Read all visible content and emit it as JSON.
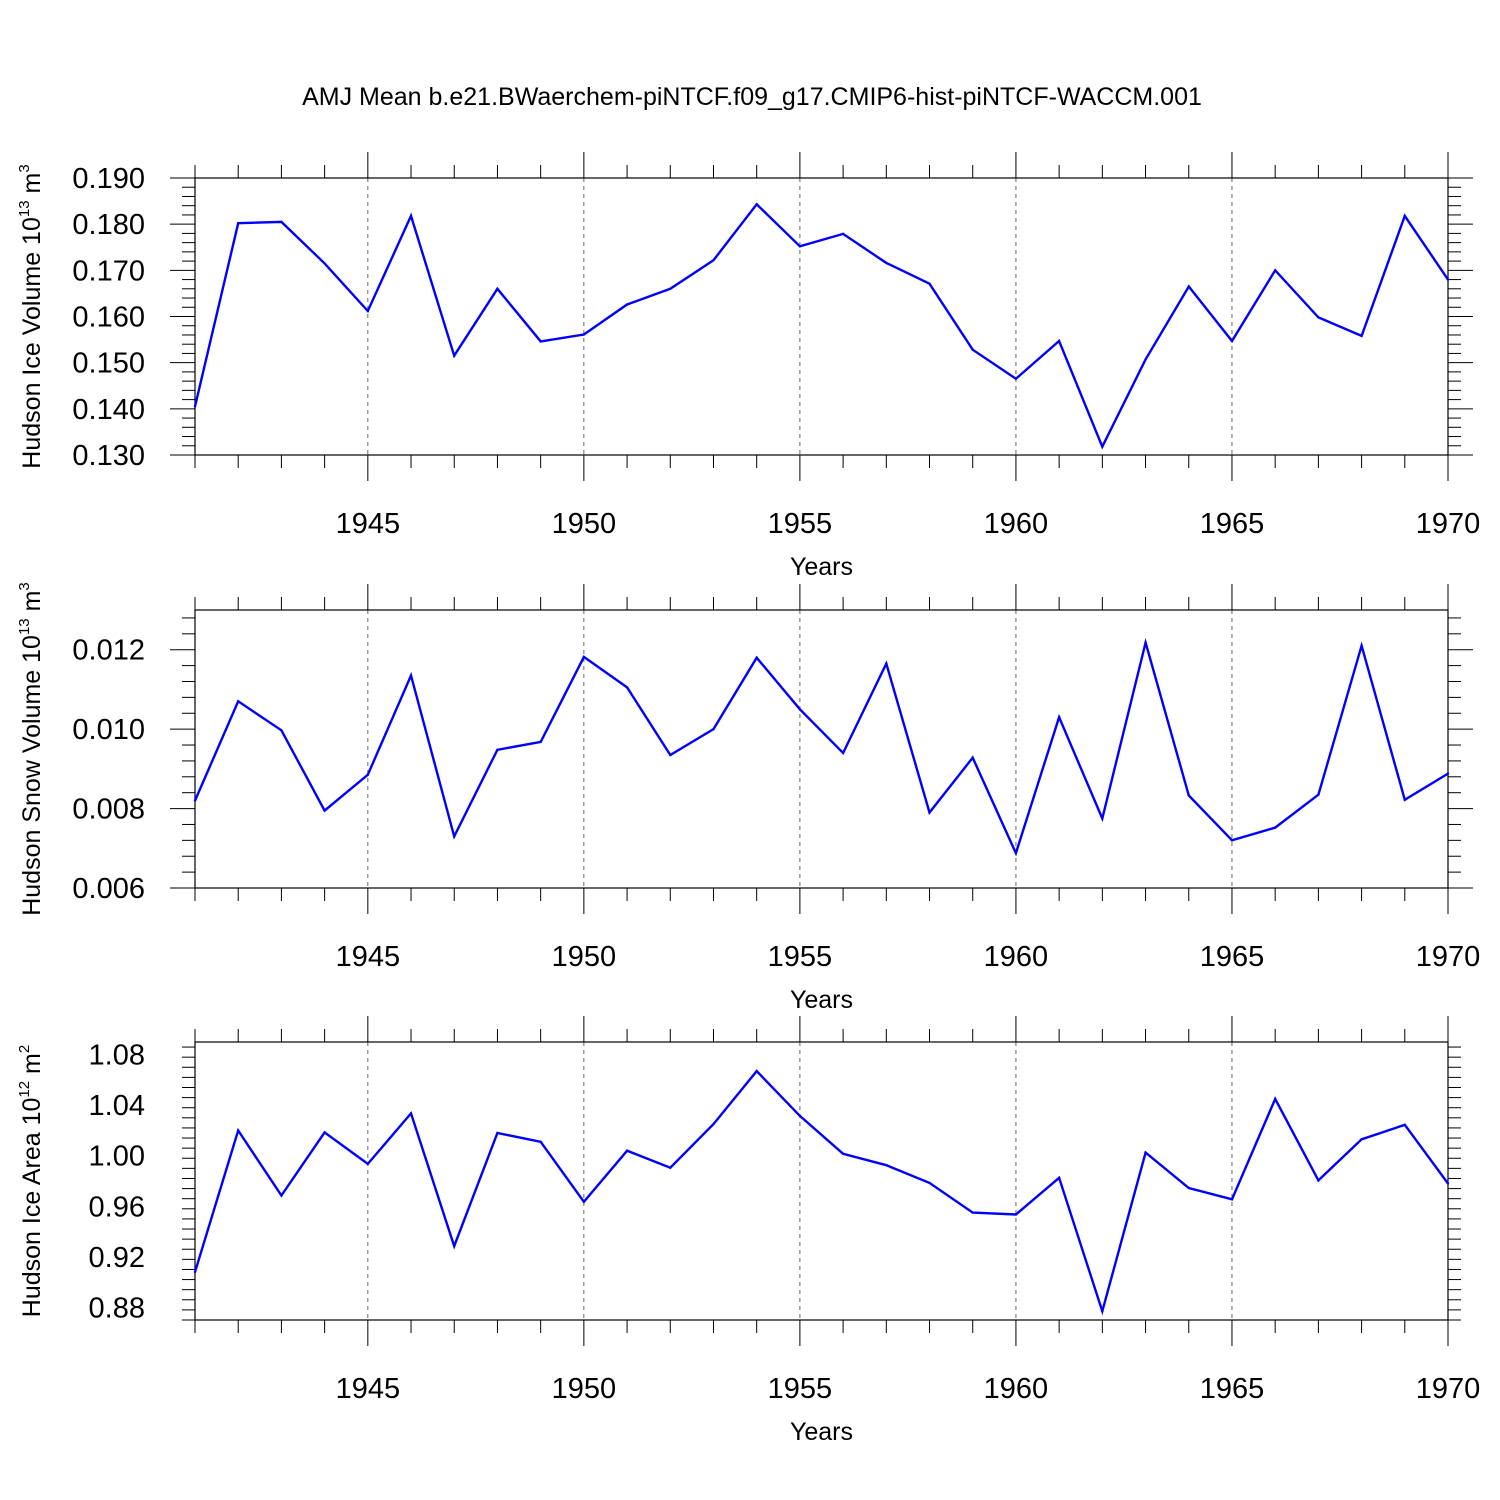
{
  "figure_title": "AMJ Mean b.e21.BWaerchem-piNTCF.f09_g17.CMIP6-hist-piNTCF-WACCM.001",
  "colors": {
    "line": "#0000ff",
    "axis": "#000000",
    "grid": "#000000"
  },
  "chart_data": [
    {
      "type": "line",
      "title": "AMJ Mean b.e21.BWaerchem-piNTCF.f09_g17.CMIP6-hist-piNTCF-WACCM.001",
      "ylabel": {
        "base": "Hudson Ice Volume 10",
        "exp1": "13",
        "mid": " m",
        "exp2": "3"
      },
      "xlabel": "Years",
      "xlim": [
        1941,
        1970
      ],
      "ylim": [
        0.13,
        0.19
      ],
      "yticks": [
        0.13,
        0.14,
        0.15,
        0.16,
        0.17,
        0.18,
        0.19
      ],
      "ytick_labels": [
        "0.130",
        "0.140",
        "0.150",
        "0.160",
        "0.170",
        "0.180",
        "0.190"
      ],
      "xticks": [
        1945,
        1950,
        1955,
        1960,
        1965,
        1970
      ],
      "xtick_labels": [
        "1945",
        "1950",
        "1955",
        "1960",
        "1965",
        "1970"
      ],
      "x": [
        1941,
        1942,
        1943,
        1944,
        1945,
        1946,
        1947,
        1948,
        1949,
        1950,
        1951,
        1952,
        1953,
        1954,
        1955,
        1956,
        1957,
        1958,
        1959,
        1960,
        1961,
        1962,
        1963,
        1964,
        1965,
        1966,
        1967,
        1968,
        1969,
        1970
      ],
      "values": [
        0.1405,
        0.1802,
        0.1805,
        0.1715,
        0.1612,
        0.1818,
        0.1515,
        0.166,
        0.1546,
        0.1561,
        0.1626,
        0.166,
        0.1722,
        0.1843,
        0.1752,
        0.1779,
        0.1716,
        0.1671,
        0.1528,
        0.1465,
        0.1547,
        0.1318,
        0.1507,
        0.1665,
        0.1547,
        0.17,
        0.1598,
        0.1558,
        0.1818,
        0.168
      ]
    },
    {
      "type": "line",
      "ylabel": {
        "base": "Hudson Snow Volume 10",
        "exp1": "13",
        "mid": " m",
        "exp2": "3"
      },
      "xlabel": "Years",
      "xlim": [
        1941,
        1970
      ],
      "ylim": [
        0.006,
        0.013
      ],
      "yticks": [
        0.006,
        0.008,
        0.01,
        0.012
      ],
      "ytick_labels": [
        "0.006",
        "0.008",
        "0.010",
        "0.012"
      ],
      "xticks": [
        1945,
        1950,
        1955,
        1960,
        1965,
        1970
      ],
      "xtick_labels": [
        "1945",
        "1950",
        "1955",
        "1960",
        "1965",
        "1970"
      ],
      "x": [
        1941,
        1942,
        1943,
        1944,
        1945,
        1946,
        1947,
        1948,
        1949,
        1950,
        1951,
        1952,
        1953,
        1954,
        1955,
        1956,
        1957,
        1958,
        1959,
        1960,
        1961,
        1962,
        1963,
        1964,
        1965,
        1966,
        1967,
        1968,
        1969,
        1970
      ],
      "values": [
        0.0082,
        0.0107,
        0.00997,
        0.00795,
        0.00885,
        0.01135,
        0.0073,
        0.00948,
        0.00968,
        0.01182,
        0.01105,
        0.00935,
        0.01,
        0.0118,
        0.0105,
        0.0094,
        0.01165,
        0.0079,
        0.00928,
        0.00688,
        0.0103,
        0.00775,
        0.01218,
        0.00833,
        0.0072,
        0.00752,
        0.00835,
        0.0121,
        0.00822,
        0.00888
      ]
    },
    {
      "type": "line",
      "ylabel": {
        "base": "Hudson Ice Area 10",
        "exp1": "12",
        "mid": " m",
        "exp2": "2"
      },
      "xlabel": "Years",
      "xlim": [
        1941,
        1970
      ],
      "ylim": [
        0.87,
        1.09
      ],
      "yticks": [
        0.88,
        0.92,
        0.96,
        1.0,
        1.04,
        1.08
      ],
      "ytick_labels": [
        "0.88",
        "0.92",
        "0.96",
        "1.00",
        "1.04",
        "1.08"
      ],
      "xticks": [
        1945,
        1950,
        1955,
        1960,
        1965,
        1970
      ],
      "xtick_labels": [
        "1945",
        "1950",
        "1955",
        "1960",
        "1965",
        "1970"
      ],
      "x": [
        1941,
        1942,
        1943,
        1944,
        1945,
        1946,
        1947,
        1948,
        1949,
        1950,
        1951,
        1952,
        1953,
        1954,
        1955,
        1956,
        1957,
        1958,
        1959,
        1960,
        1961,
        1962,
        1963,
        1964,
        1965,
        1966,
        1967,
        1968,
        1969,
        1970
      ],
      "values": [
        0.908,
        1.02,
        0.9685,
        1.0185,
        0.9935,
        1.0335,
        0.9285,
        1.018,
        1.011,
        0.9635,
        1.004,
        0.9905,
        1.025,
        1.067,
        1.0315,
        1.0015,
        0.9925,
        0.9785,
        0.955,
        0.9535,
        0.9825,
        0.877,
        1.0025,
        0.9745,
        0.9655,
        1.045,
        0.9805,
        1.013,
        1.0245,
        0.978
      ]
    }
  ]
}
